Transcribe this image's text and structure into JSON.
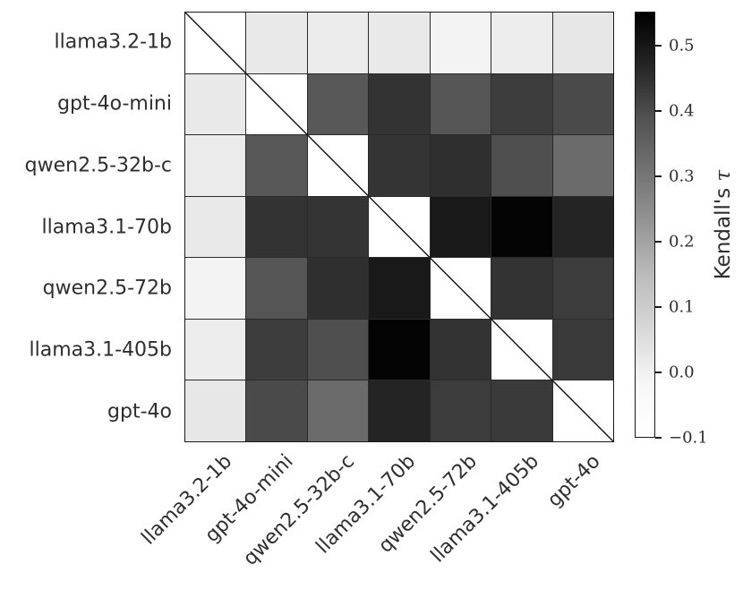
{
  "figure": {
    "background": "#ffffff",
    "text_color": "#2e2e2e",
    "grid_line_color": "#2a2a2a"
  },
  "chart_data": {
    "type": "heatmap",
    "title": "",
    "xlabel": "",
    "ylabel": "",
    "x_categories": [
      "llama3.2-1b",
      "gpt-4o-mini",
      "qwen2.5-32b-c",
      "llama3.1-70b",
      "qwen2.5-72b",
      "llama3.1-405b",
      "gpt-4o"
    ],
    "y_categories": [
      "llama3.2-1b",
      "gpt-4o-mini",
      "qwen2.5-32b-c",
      "llama3.1-70b",
      "qwen2.5-72b",
      "llama3.1-405b",
      "gpt-4o"
    ],
    "matrix": [
      [
        null,
        0.02,
        0.01,
        0.02,
        0.0,
        0.01,
        0.02
      ],
      [
        0.02,
        null,
        0.37,
        0.44,
        0.38,
        0.43,
        0.4
      ],
      [
        0.01,
        0.37,
        null,
        0.44,
        0.46,
        0.39,
        0.33
      ],
      [
        0.02,
        0.44,
        0.44,
        null,
        0.5,
        0.54,
        0.48
      ],
      [
        0.0,
        0.38,
        0.46,
        0.5,
        null,
        0.45,
        0.43
      ],
      [
        0.01,
        0.43,
        0.39,
        0.54,
        0.45,
        null,
        0.43
      ],
      [
        0.02,
        0.4,
        0.33,
        0.48,
        0.43,
        0.43,
        null
      ]
    ],
    "cell_colors": [
      [
        null,
        "#e9e9e9",
        "#ebebeb",
        "#e9e9e9",
        "#f3f3f3",
        "#ededed",
        "#e7e7e7"
      ],
      [
        "#e9e9e9",
        null,
        "#585858",
        "#333333",
        "#555555",
        "#3d3d3d",
        "#4a4a4a"
      ],
      [
        "#ebebeb",
        "#585858",
        null,
        "#343434",
        "#2f2f2f",
        "#4f4f4f",
        "#6b6b6b"
      ],
      [
        "#e9e9e9",
        "#333333",
        "#343434",
        null,
        "#191919",
        "#040404",
        "#242424"
      ],
      [
        "#f3f3f3",
        "#555555",
        "#2f2f2f",
        "#191919",
        null,
        "#333333",
        "#3c3c3c"
      ],
      [
        "#ededed",
        "#3d3d3d",
        "#4f4f4f",
        "#040404",
        "#333333",
        null,
        "#3a3a3a"
      ],
      [
        "#e7e7e7",
        "#4a4a4a",
        "#6b6b6b",
        "#242424",
        "#3c3c3c",
        "#3a3a3a",
        null
      ]
    ],
    "diagonal": "masked white cells crossed by a thin black figure diagonal line",
    "colorbar": {
      "label_text": "Kendall's",
      "label_symbol": "τ",
      "colormap": "Greys",
      "vmin": -0.1,
      "vmax": 0.552,
      "ticks": [
        0.5,
        0.4,
        0.3,
        0.2,
        0.1,
        0.0,
        -0.1
      ],
      "tick_labels": [
        "0.5",
        "0.4",
        "0.3",
        "0.2",
        "0.1",
        "0.0",
        "−0.1"
      ],
      "legend_position": "right"
    }
  }
}
